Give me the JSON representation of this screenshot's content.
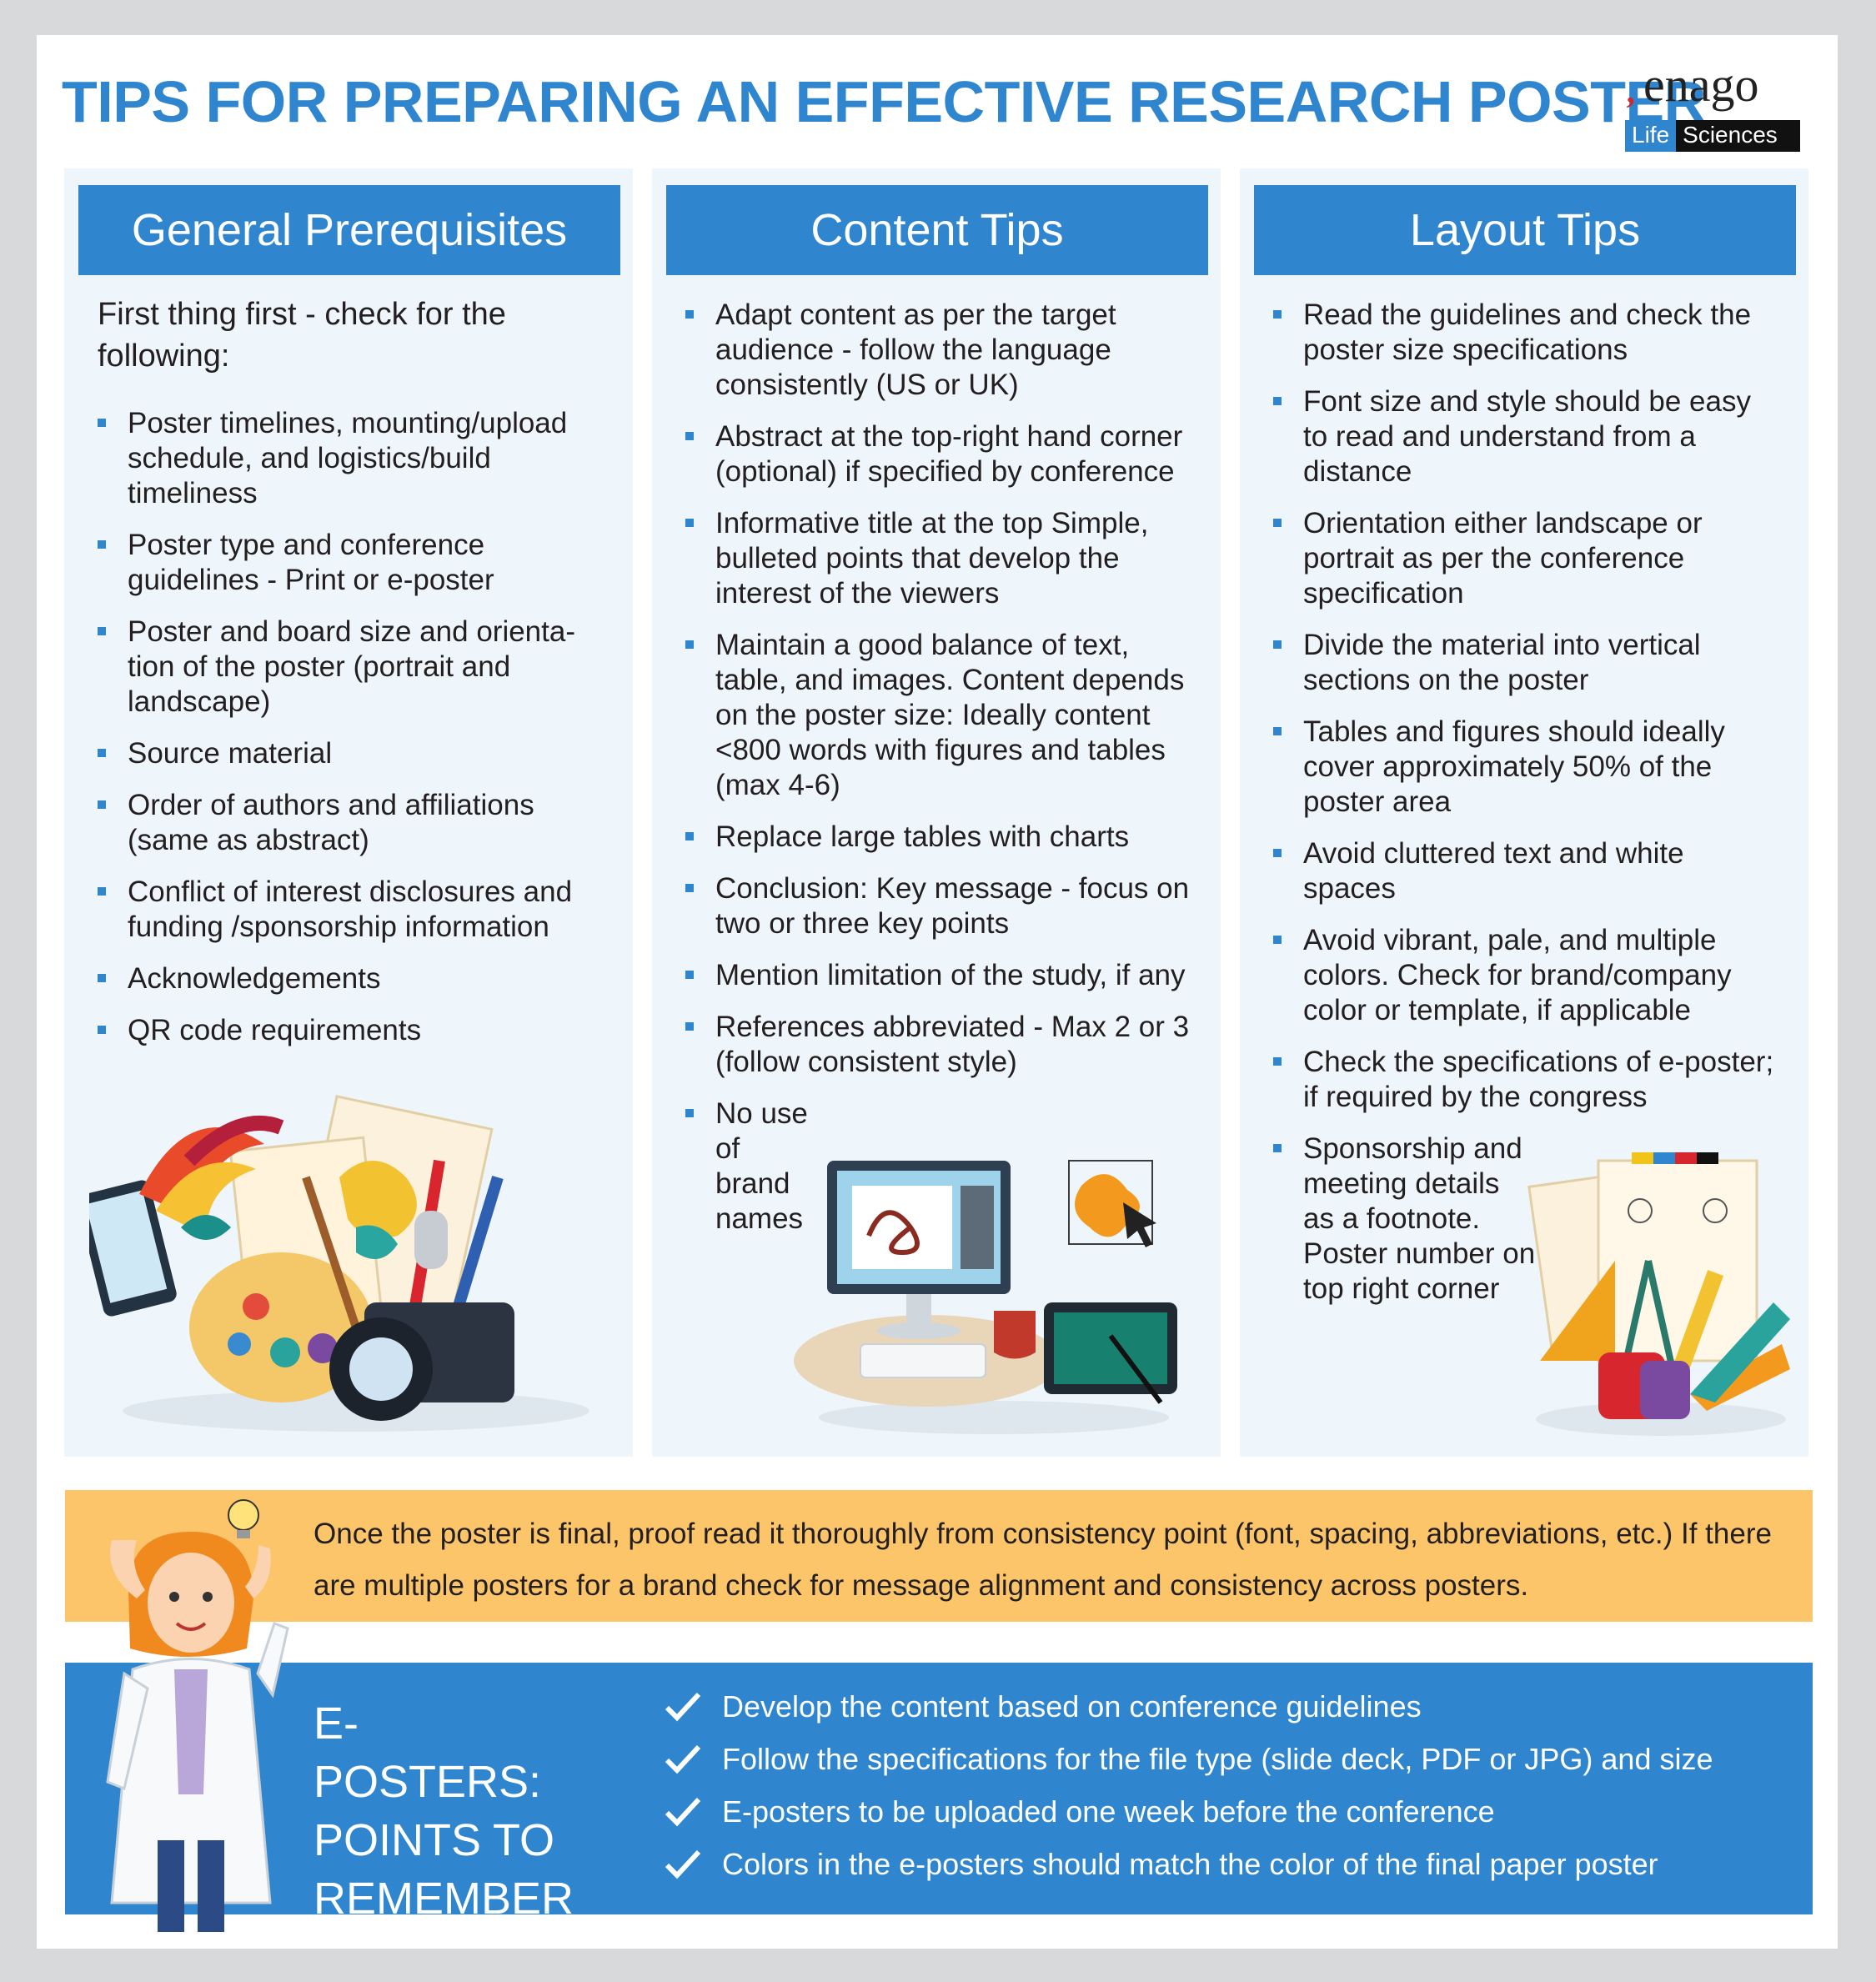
{
  "title": "TIPS FOR PREPARING AN EFFECTIVE RESEARCH POSTER",
  "logo": {
    "word": "enago",
    "mark": "‚",
    "life": "Life",
    "sciences": "Sciences"
  },
  "columns": [
    {
      "heading": "General Prerequisites",
      "intro": "First thing first - check for the following:",
      "items": [
        "Poster timelines, mounting/upload schedule, and logistics/build timeliness",
        "Poster type and conference guidelines - Print or e-poster",
        "Poster and board size and orienta-tion of the poster (portrait and landscape)",
        "Source material",
        "Order of authors and affiliations (same as abstract)",
        "Conflict of interest disclosures and funding /sponsorship information",
        "Acknowledgements",
        "QR code requirements"
      ]
    },
    {
      "heading": "Content Tips",
      "items": [
        "Adapt content as per the target audience - follow the language consistently (US or UK)",
        "Abstract at the top-right hand corner (optional) if specified by conference",
        "Informative title at the top Simple, bulleted points that develop the interest of the viewers",
        "Maintain a good balance of text, table, and images. Content depends on the poster size: Ideally content <800 words with figures and tables (max 4-6)",
        "Replace large tables with charts",
        "Conclusion: Key message - focus on two or three key points",
        "Mention limitation of the study, if any",
        "References abbreviated - Max 2 or 3 (follow consistent style)",
        "No use of brand names"
      ]
    },
    {
      "heading": "Layout Tips",
      "items": [
        "Read the guidelines and check the poster size specifications",
        "Font size and style should be easy to read and understand from a distance",
        "Orientation either landscape or portrait as per the conference specification",
        "Divide the material into vertical sections on the poster",
        "Tables and figures should ideally cover approximately 50% of the poster area",
        "Avoid cluttered text and white spaces",
        "Avoid vibrant, pale, and multiple colors. Check for brand/company color or template, if applicable",
        "Check the specifications of e-poster; if required by the congress",
        "Sponsorship and meeting details as a footnote. Poster number on top right corner"
      ]
    }
  ],
  "proof_text": "Once the poster is final, proof read it thoroughly from consistency point (font, spacing, abbreviations, etc.) If there are multiple posters for a brand check for message alignment and consistency across posters.",
  "eposters": {
    "title": "E-POSTERS: POINTS TO REMEMBER",
    "items": [
      "Develop the content based on conference guidelines",
      "Follow the specifications for the file type (slide deck, PDF or JPG) and size",
      "E-posters to be uploaded one week before the conference",
      "Colors in the e-posters should match the color of the final paper poster"
    ]
  },
  "icons": {
    "bullet": "square-bullet-icon",
    "check": "check-icon",
    "art_supplies": "art-supplies-illustration",
    "computer": "computer-workstation-illustration",
    "drafting": "drafting-tools-illustration",
    "scientist": "scientist-illustration"
  },
  "colors": {
    "accent": "#2f86cf",
    "column_bg": "#eef6fb",
    "proof_bg": "#fdc56a"
  }
}
